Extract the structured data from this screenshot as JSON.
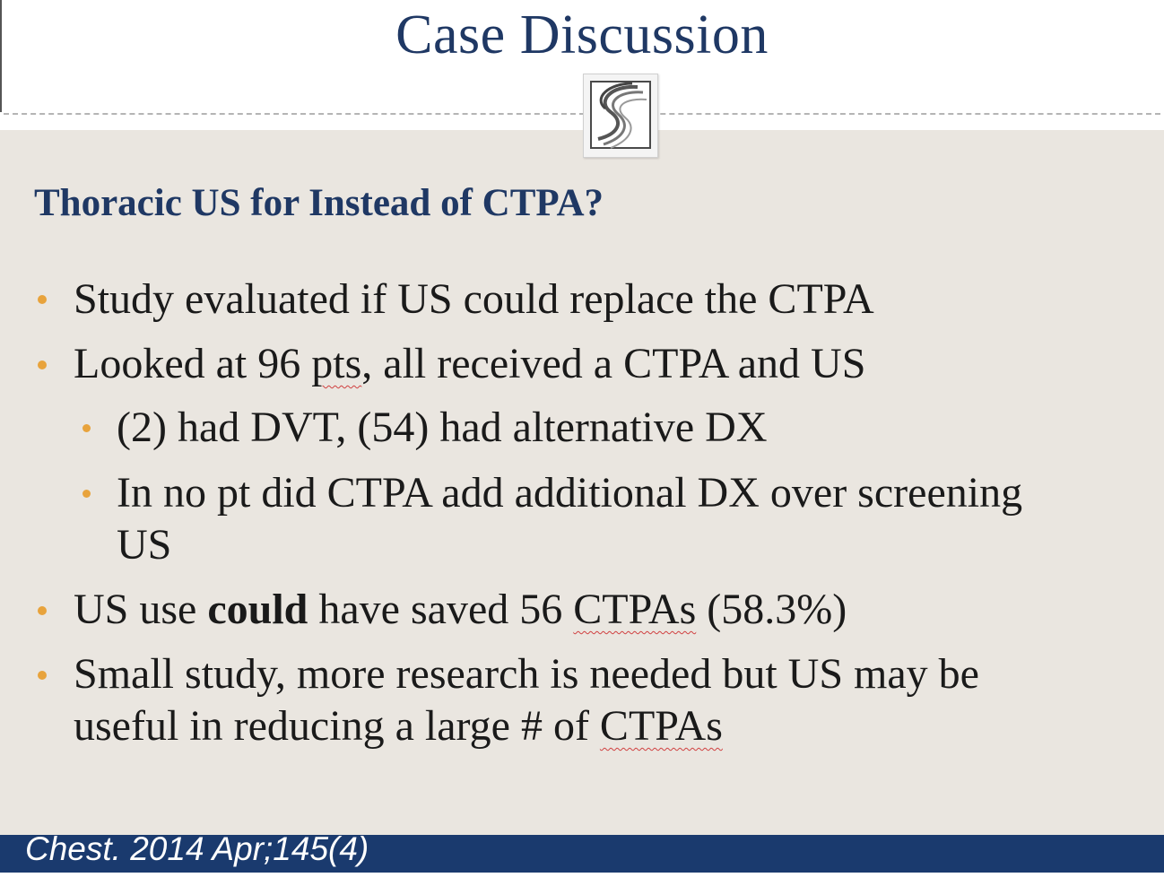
{
  "slide": {
    "title": "Case Discussion",
    "logo_icon": "stylized-s-logo-icon",
    "subheading": "Thoracic US for Instead of CTPA?",
    "bullets": {
      "b1": "Study evaluated if US could replace the CTPA",
      "b2_pre": "Looked at 96 ",
      "b2_squig": "pts",
      "b2_post": ", all received a CTPA and US",
      "b2_sub1": "(2) had DVT, (54) had alternative DX",
      "b2_sub2_line1": "In no pt did CTPA add additional DX over screening",
      "b2_sub2_line2": "US",
      "b3_pre": "US use ",
      "b3_bold": "could",
      "b3_mid": " have saved 56 ",
      "b3_squig": "CTPAs",
      "b3_post": " (58.3%)",
      "b4_line1": "Small study, more research is needed but US may be",
      "b4_line2_pre": "useful in reducing a large # of ",
      "b4_line2_squig": "CTPAs"
    },
    "citation": "Chest. 2014 Apr;145(4)",
    "colors": {
      "title": "#1f3864",
      "bullet_dot": "#e8a33c",
      "content_bg": "#eae6e0",
      "footer_bar": "#1a3a6e"
    }
  }
}
